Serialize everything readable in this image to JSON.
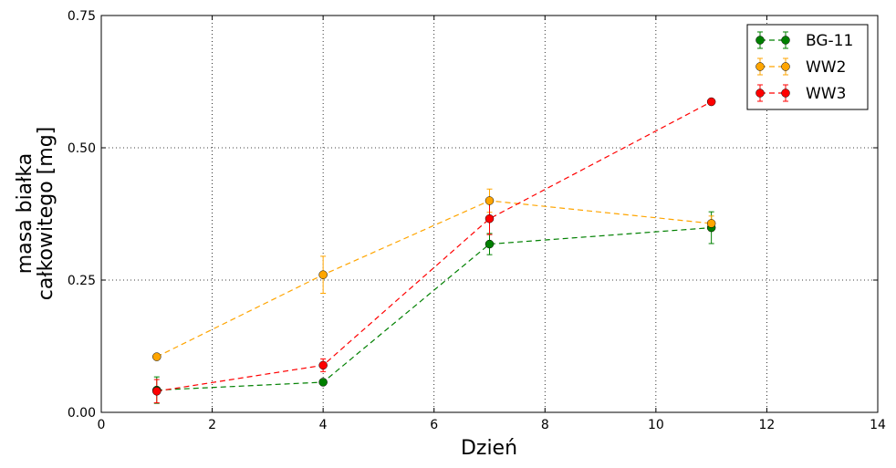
{
  "chart_data": {
    "type": "line",
    "xlabel": "Dzień",
    "ylabel_lines": [
      "masa białka",
      "całkowitego [mg]"
    ],
    "xlim": [
      0,
      14
    ],
    "ylim": [
      0,
      0.75
    ],
    "xticks": [
      0,
      2,
      4,
      6,
      8,
      10,
      12,
      14
    ],
    "xtick_labels": [
      "0",
      "2",
      "4",
      "6",
      "8",
      "10",
      "12",
      "14"
    ],
    "yticks": [
      0,
      0.25,
      0.5,
      0.75
    ],
    "ytick_labels": [
      "0.00",
      "0.25",
      "0.50",
      "0.75"
    ],
    "grid": true,
    "legend_position": "top-right",
    "series": [
      {
        "name": "BG-11",
        "color": "#008000",
        "x": [
          1,
          4,
          7,
          11
        ],
        "y": [
          0.042,
          0.057,
          0.318,
          0.349
        ],
        "err": [
          0.025,
          0.003,
          0.02,
          0.03
        ]
      },
      {
        "name": "WW2",
        "color": "#ffa500",
        "x": [
          1,
          4,
          7,
          11
        ],
        "y": [
          0.105,
          0.26,
          0.4,
          0.357
        ],
        "err": [
          0.003,
          0.035,
          0.022,
          0.014
        ]
      },
      {
        "name": "WW3",
        "color": "#ff0000",
        "x": [
          1,
          4,
          7,
          11
        ],
        "y": [
          0.04,
          0.089,
          0.366,
          0.587
        ],
        "err": [
          0.022,
          0.012,
          0.03,
          0.003
        ]
      }
    ]
  }
}
